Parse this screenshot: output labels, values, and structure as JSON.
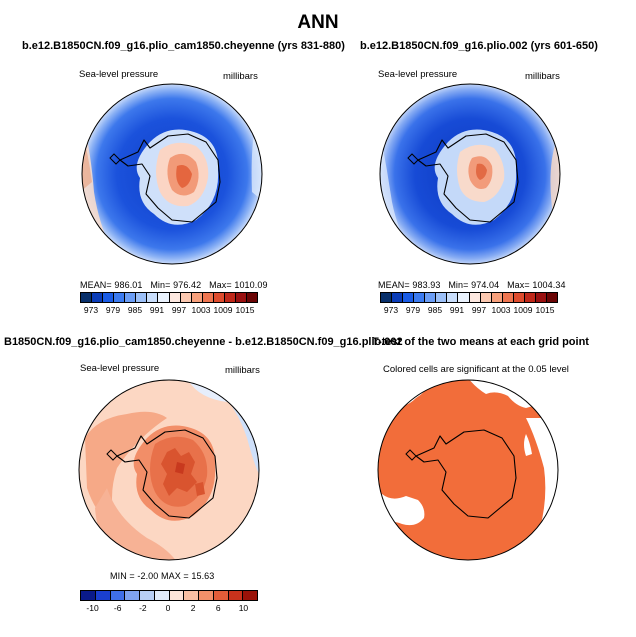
{
  "title": "ANN",
  "panels": [
    {
      "title": "b.e12.B1850CN.f09_g16.plio_cam1850.cheyenne (yrs 831-880)",
      "left_label": "Sea-level pressure",
      "right_label": "millibars",
      "stats": {
        "mean_label": "MEAN=",
        "mean": "986.01",
        "min_label": "Min=",
        "min": "976.42",
        "max_label": "Max=",
        "max": "1010.09"
      },
      "colorbar_ticks": [
        "973",
        "979",
        "985",
        "991",
        "997",
        "1003",
        "1009",
        "1015"
      ]
    },
    {
      "title": "b.e12.B1850CN.f09_g16.plio.002 (yrs 601-650)",
      "left_label": "Sea-level pressure",
      "right_label": "millibars",
      "stats": {
        "mean_label": "MEAN=",
        "mean": "983.93",
        "min_label": "Min=",
        "min": "974.04",
        "max_label": "Max=",
        "max": "1004.34"
      },
      "colorbar_ticks": [
        "973",
        "979",
        "985",
        "991",
        "997",
        "1003",
        "1009",
        "1015"
      ]
    },
    {
      "title": "B1850CN.f09_g16.plio_cam1850.cheyenne - b.e12.B1850CN.f09_g16.plio.002",
      "left_label": "Sea-level pressure",
      "right_label": "millibars",
      "stats": {
        "min_label": "MIN =",
        "min": "-2.00",
        "max_label": "MAX =",
        "max": "15.63"
      },
      "colorbar_ticks": [
        "-10",
        "-6",
        "-2",
        "0",
        "2",
        "6",
        "10"
      ]
    },
    {
      "title": "T-test of the two means at each grid point",
      "caption": "Colored cells are significant at the 0.05 level"
    }
  ],
  "colors": {
    "abs_scale": [
      "#08306b",
      "#0a3cb8",
      "#1a5ce6",
      "#3c7bf0",
      "#6b9df5",
      "#9cc0f8",
      "#c8ddfb",
      "#eaf2fd",
      "#fde8e0",
      "#fbc8b0",
      "#f7a07c",
      "#ef7550",
      "#df4c2e",
      "#c0281a",
      "#9a1010",
      "#6b0505"
    ],
    "diff_scale": [
      "#0a1a8a",
      "#1a3fd0",
      "#3f6fe8",
      "#7fa3f0",
      "#b8cff6",
      "#e2ecfb",
      "#fde4d8",
      "#f9bfa3",
      "#f2906a",
      "#e35d39",
      "#c8321c",
      "#9a1208"
    ],
    "ocean_abs": "#1d55e0",
    "ring_abs": "#3f7ae8",
    "ttest": "#f26d3a"
  }
}
